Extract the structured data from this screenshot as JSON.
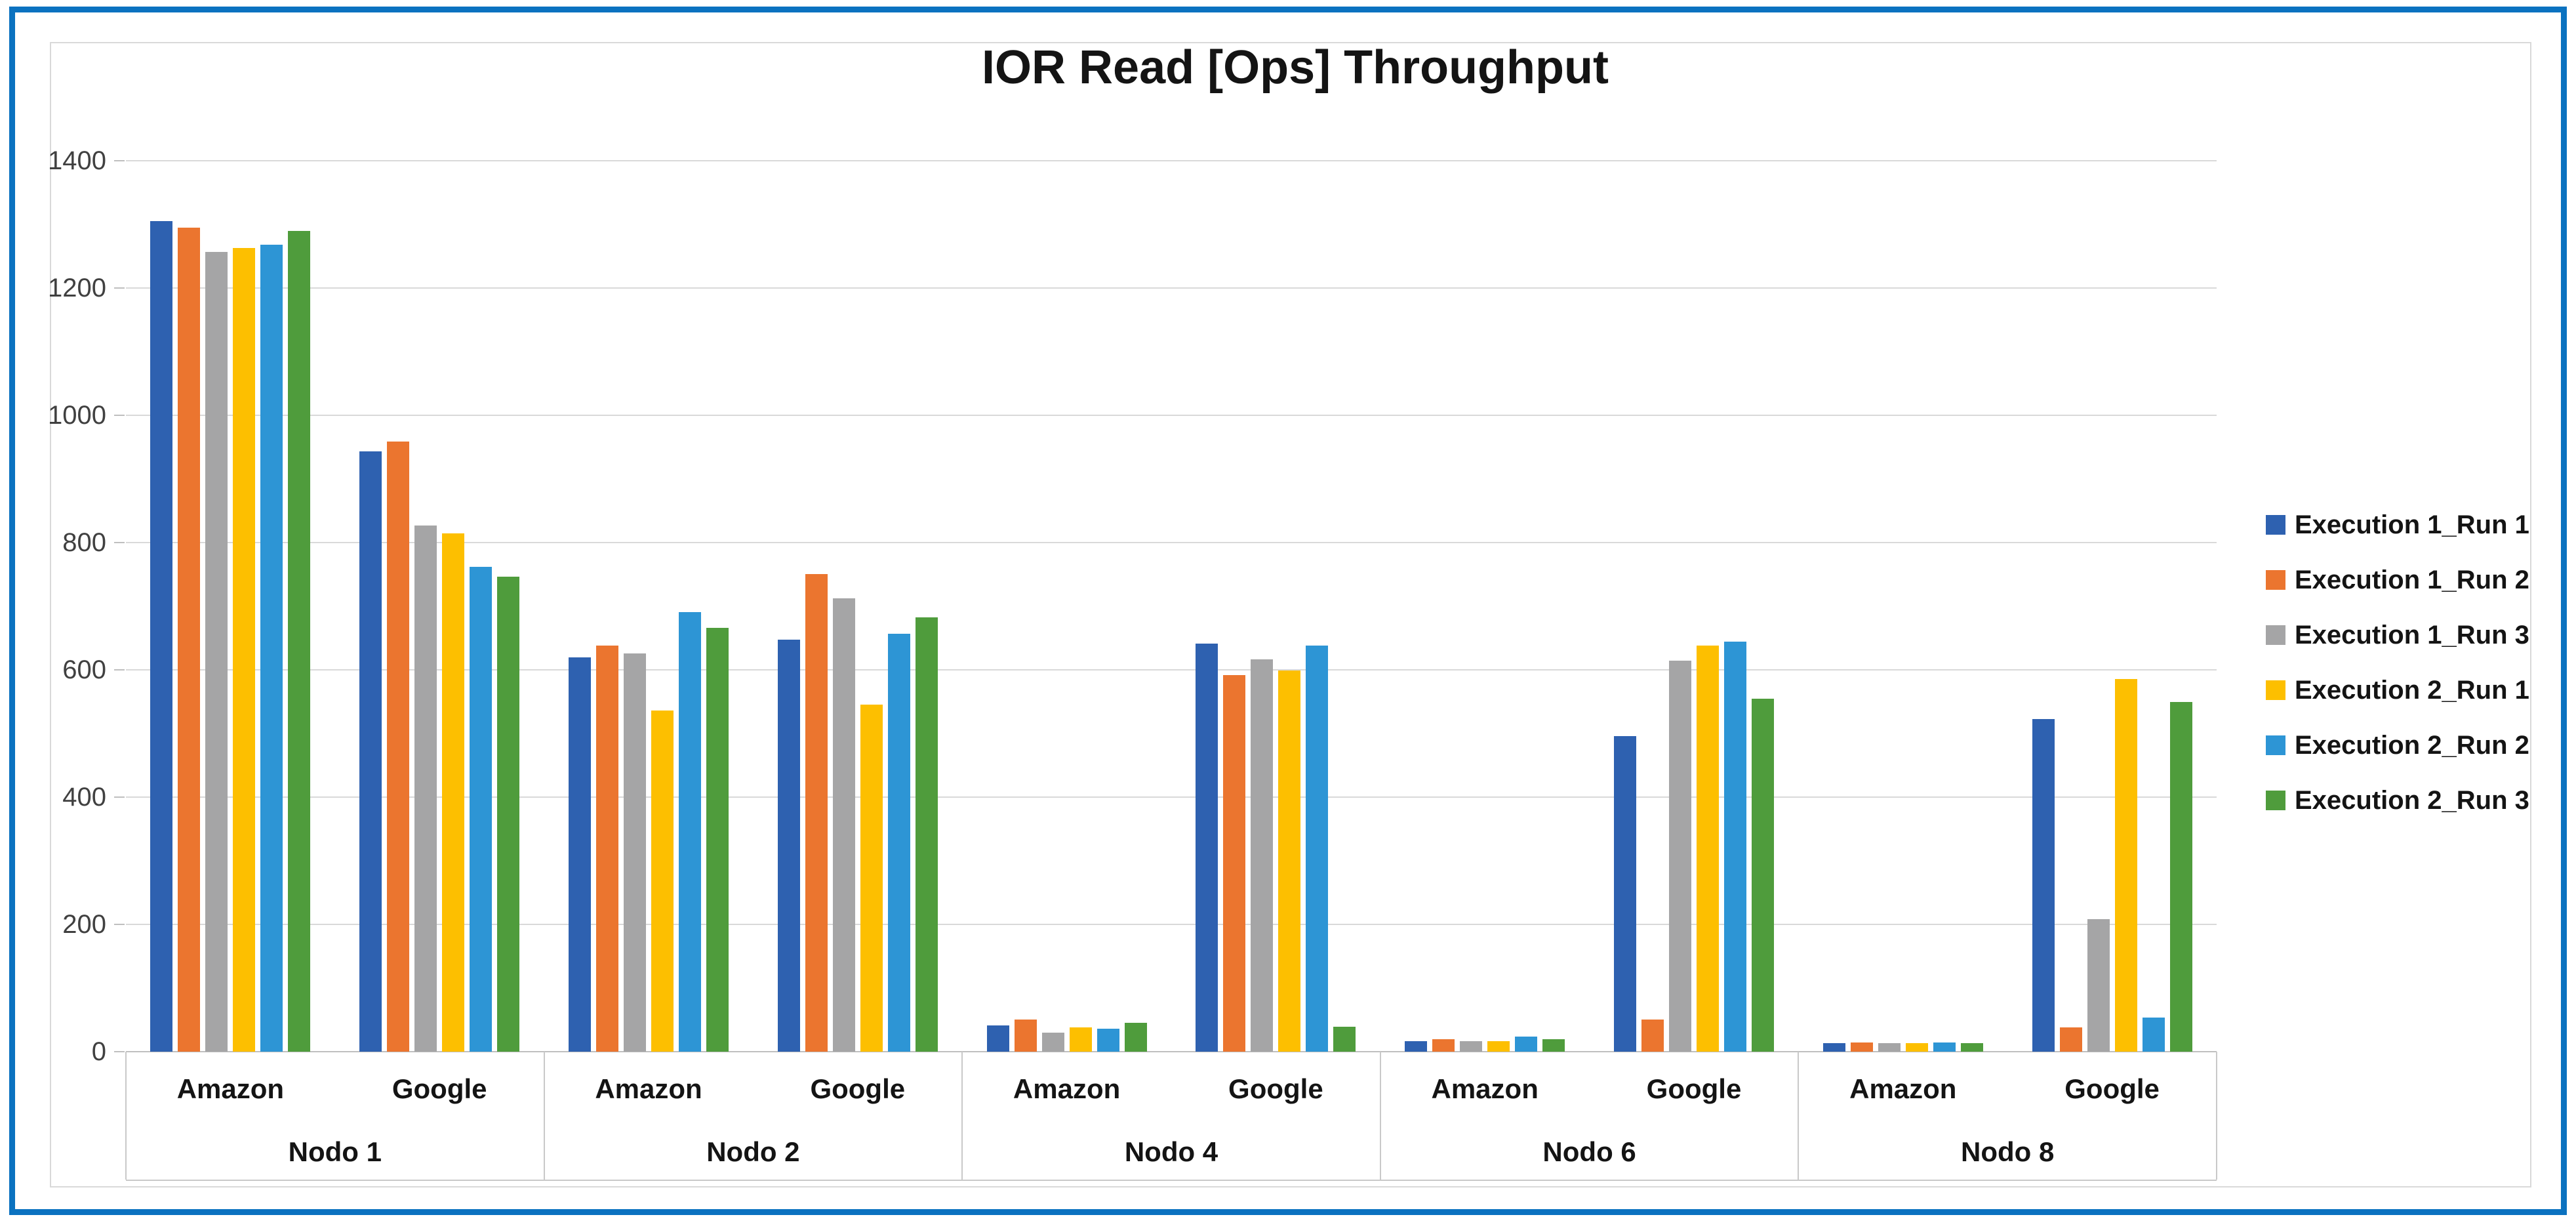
{
  "title": "IOR Read [Ops] Throughput",
  "colors": {
    "frame": "#0B72C0",
    "gridline": "#D9D9D9",
    "axis_line": "#BFBFBF",
    "tick_text": "#404040",
    "label_text": "#141414"
  },
  "chart_data": {
    "type": "bar",
    "title": "IOR Read [Ops] Throughput",
    "xlabel": "",
    "ylabel": "",
    "ylim": [
      0,
      1400
    ],
    "yticks": [
      0,
      200,
      400,
      600,
      800,
      1000,
      1200,
      1400
    ],
    "grid": true,
    "legend_position": "right",
    "node_labels": [
      "Nodo 1",
      "Nodo 2",
      "Nodo 4",
      "Nodo 6",
      "Nodo 8"
    ],
    "provider_labels": [
      "Amazon",
      "Google"
    ],
    "categories": [
      "Nodo 1 - Amazon",
      "Nodo 1 - Google",
      "Nodo 2 - Amazon",
      "Nodo 2 - Google",
      "Nodo 4 - Amazon",
      "Nodo 4 - Google",
      "Nodo 6 - Amazon",
      "Nodo 6 - Google",
      "Nodo 8 - Amazon",
      "Nodo 8 - Google"
    ],
    "series": [
      {
        "name": "Execution 1_Run 1",
        "color": "#2E61B0",
        "values": [
          1305,
          943,
          620,
          647,
          41,
          641,
          17,
          496,
          13,
          523
        ]
      },
      {
        "name": "Execution 1_Run 2",
        "color": "#EB752F",
        "values": [
          1295,
          959,
          638,
          750,
          51,
          592,
          20,
          51,
          14,
          38
        ]
      },
      {
        "name": "Execution 1_Run 3",
        "color": "#A5A5A6",
        "values": [
          1257,
          827,
          626,
          712,
          30,
          616,
          17,
          614,
          13,
          208
        ]
      },
      {
        "name": "Execution 2_Run 1",
        "color": "#FDBF00",
        "values": [
          1263,
          814,
          536,
          545,
          38,
          599,
          17,
          638,
          13,
          586
        ]
      },
      {
        "name": "Execution 2_Run 2",
        "color": "#2D95D5",
        "values": [
          1268,
          762,
          691,
          657,
          36,
          638,
          24,
          644,
          14,
          54
        ]
      },
      {
        "name": "Execution 2_Run 3",
        "color": "#4F9C3C",
        "values": [
          1290,
          746,
          666,
          682,
          45,
          39,
          20,
          555,
          13,
          549
        ]
      }
    ]
  }
}
